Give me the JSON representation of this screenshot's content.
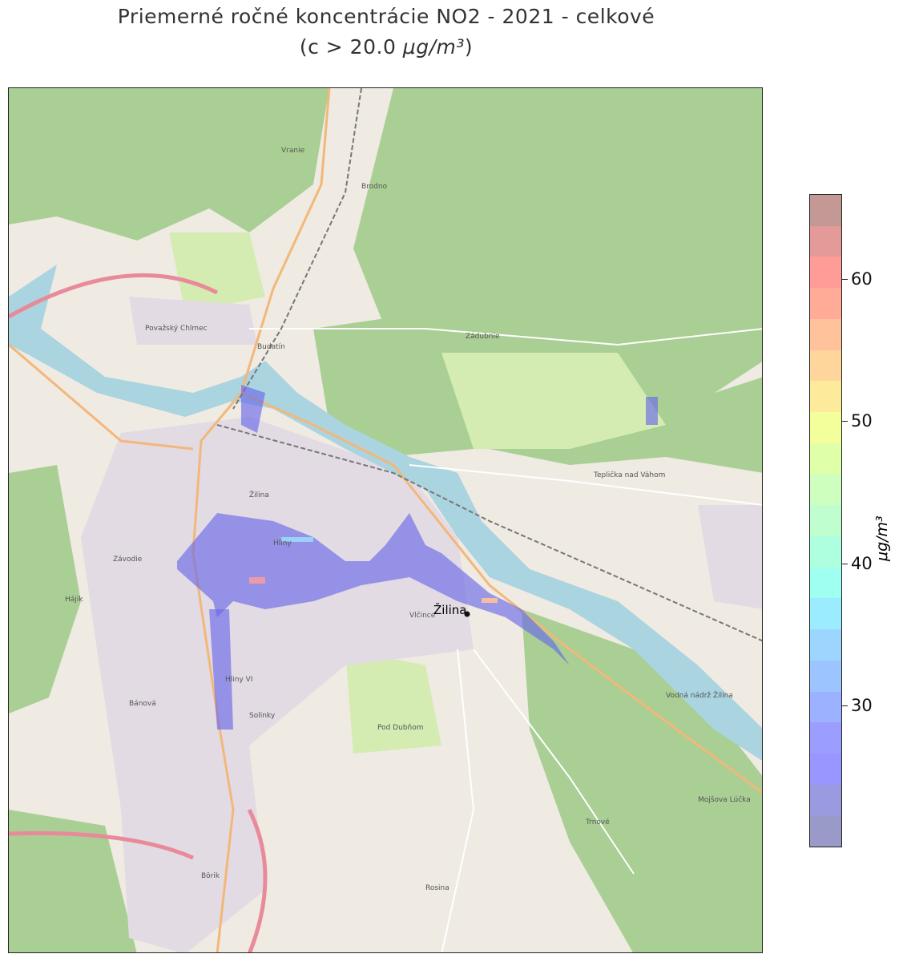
{
  "title": {
    "line1": "Priemerné ročné koncentrácie NO2 - 2021 - celkové",
    "line2_prefix": "(c > 20.0 ",
    "line2_unit": "μg/m³",
    "line2_suffix": ")"
  },
  "map": {
    "marker_label": "Žilina",
    "place_labels": [
      "Vranie",
      "Brodno",
      "Považský Chlmec",
      "Budatín",
      "Zádubnie",
      "Žilina",
      "Hliny",
      "Závodie",
      "Hájik",
      "Bánová",
      "Solinky",
      "Hliny VI",
      "Vlčince",
      "Teplička nad Váhom",
      "Trnové",
      "Mojšova Lúčka",
      "Bôrik",
      "Rosina",
      "Pod Dubňom",
      "Vodná nádrž Žilina"
    ],
    "colors": {
      "forest": "#a9cf94",
      "meadow": "#d4ecb2",
      "urban": "#e2dbe3",
      "river": "#a9d4e0",
      "road_major": "#f3b77a",
      "motorway": "#e98a9a"
    }
  },
  "colorbar": {
    "label": "μg/m³",
    "range": [
      20,
      66
    ],
    "ticks": [
      "30",
      "40",
      "50",
      "60"
    ],
    "tick_values": [
      30,
      40,
      50,
      60
    ],
    "colors": [
      "#c49895",
      "#e49a98",
      "#ff9c98",
      "#ffab98",
      "#ffc29b",
      "#fed69c",
      "#feea9b",
      "#f3ff9b",
      "#e0ffa9",
      "#cfffbf",
      "#bfffcf",
      "#adffe0",
      "#9ffff0",
      "#9cecff",
      "#9cd6ff",
      "#9cc4ff",
      "#9cb1ff",
      "#9c9eff",
      "#9a96ff",
      "#9a9ae0",
      "#9a9ac8"
    ]
  }
}
